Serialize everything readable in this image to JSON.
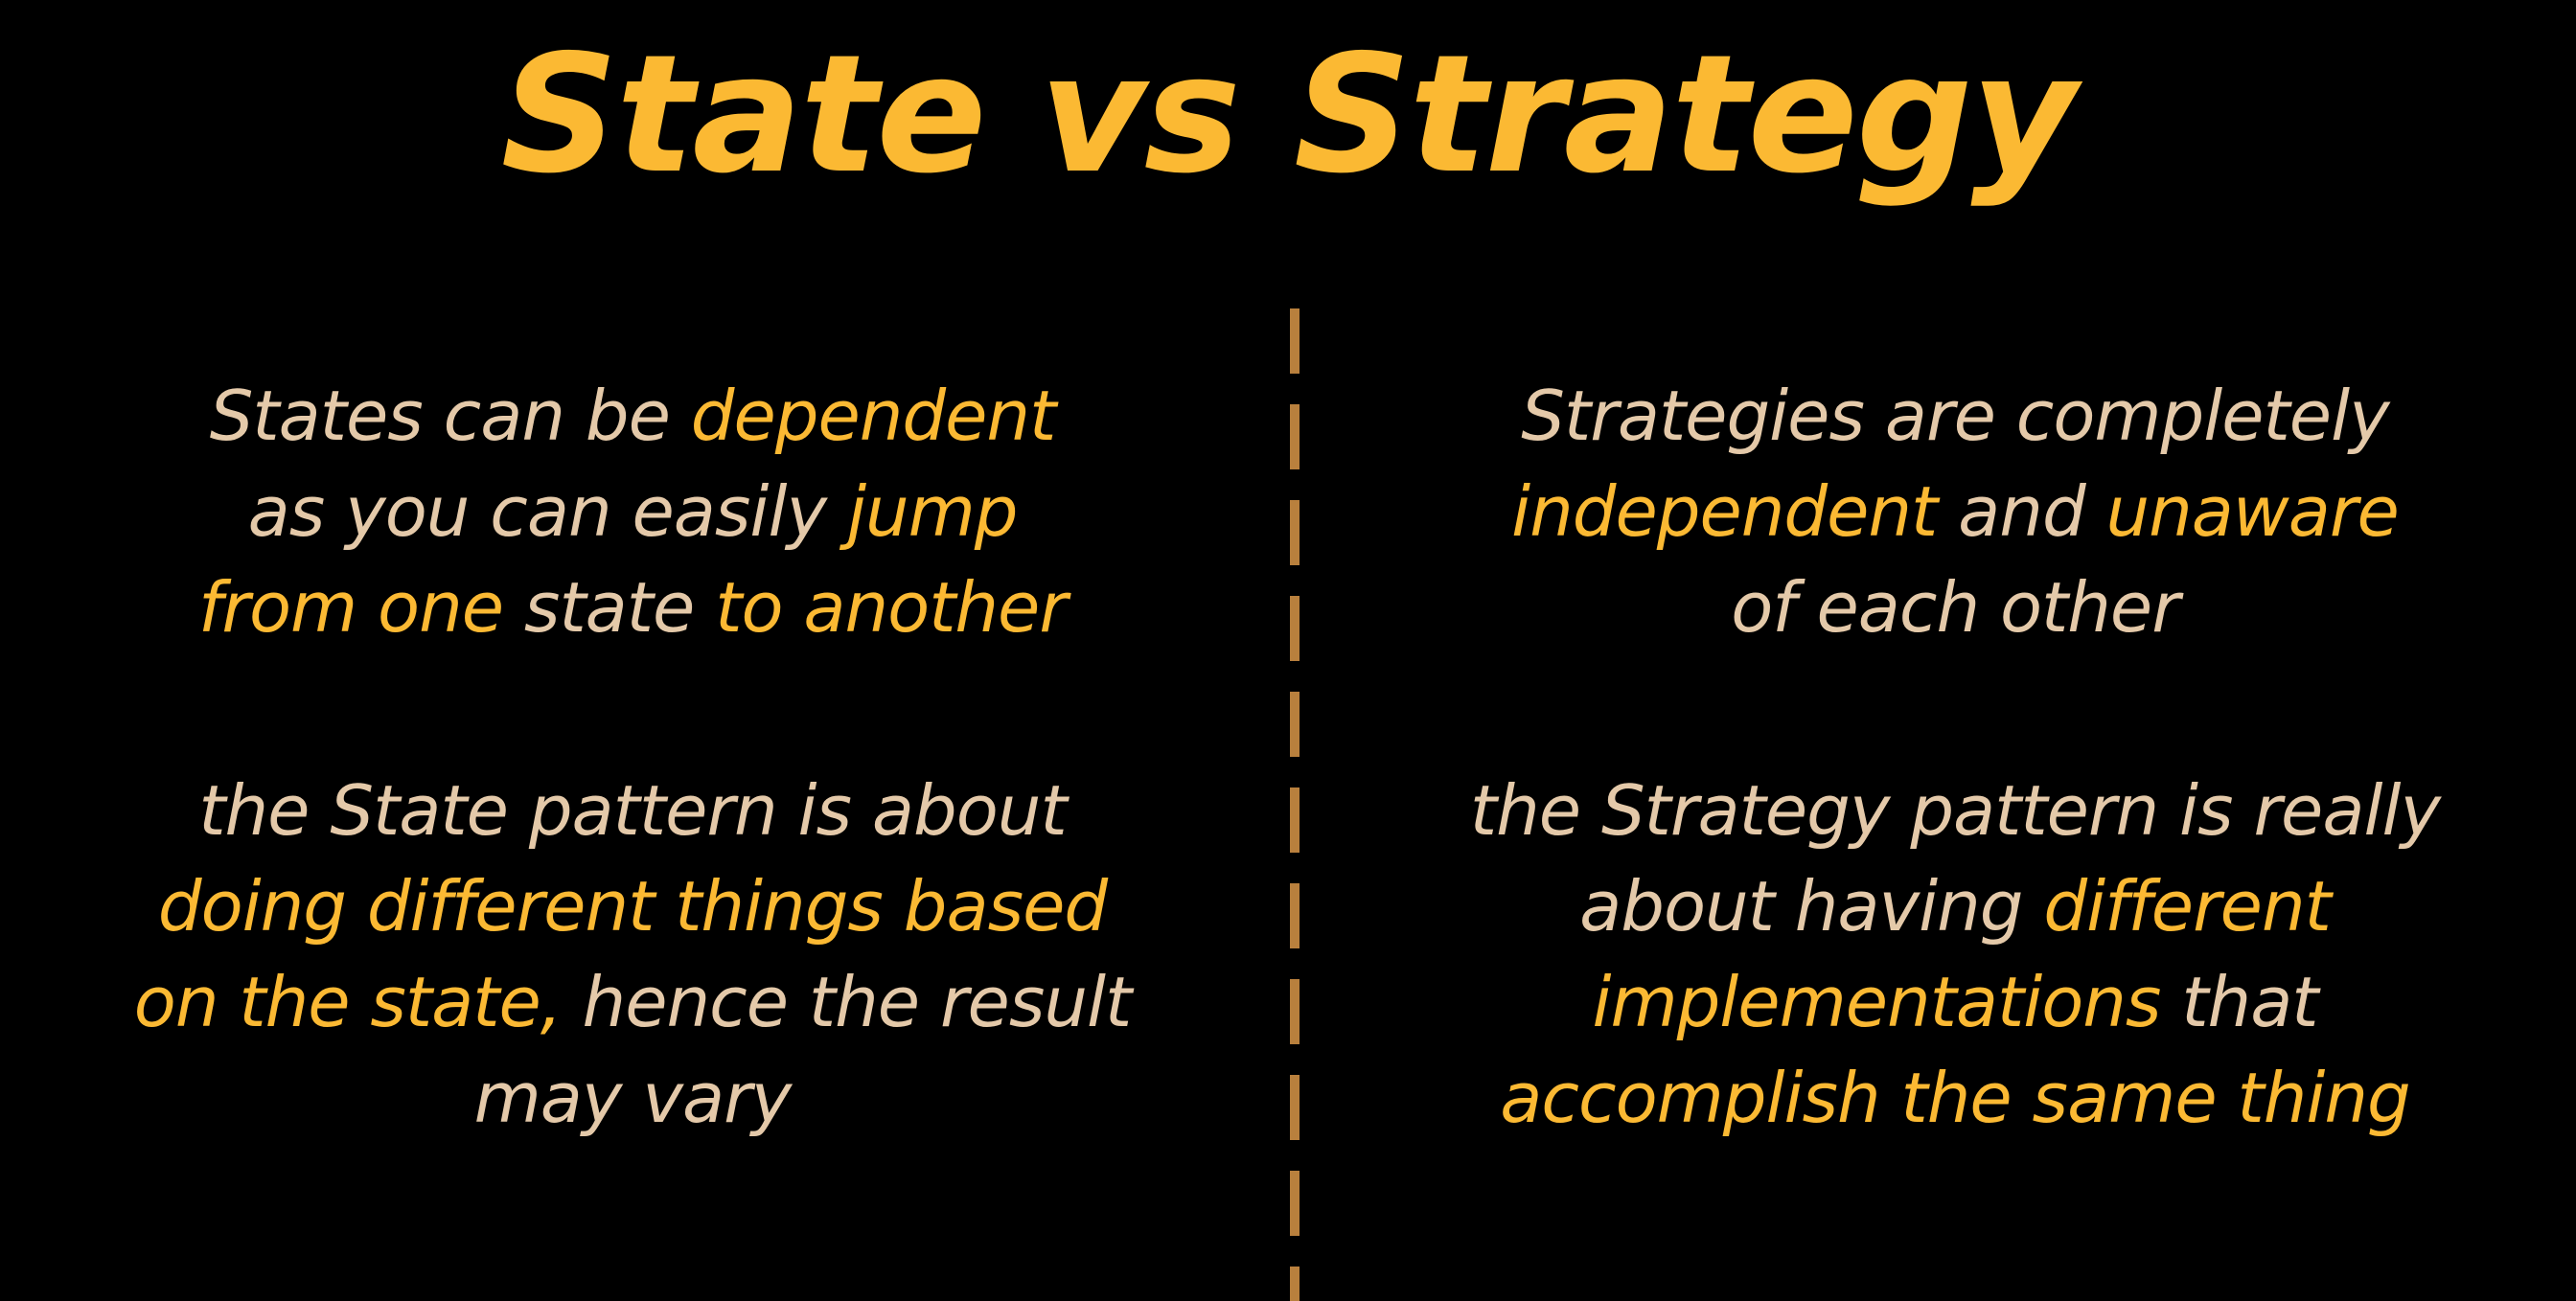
{
  "slide": {
    "title": "State vs Strategy",
    "colors": {
      "background": "#000000",
      "title": "#fbb933",
      "highlight": "#fbb933",
      "body_text": "#e4c9a9",
      "divider": "#b9803d"
    }
  },
  "left": {
    "p1": {
      "l1": {
        "a": "States can be ",
        "b": "dependent"
      },
      "l2": {
        "a": "as you can easily ",
        "b": "jump"
      },
      "l3": {
        "a": "from one",
        "b": " state ",
        "c": "to another"
      }
    },
    "p2": {
      "l1": {
        "a": "the State pattern is about"
      },
      "l2": {
        "a": "doing different things based"
      },
      "l3": {
        "a": "on the state,",
        "b": " hence the result"
      },
      "l4": {
        "a": "may vary"
      }
    }
  },
  "right": {
    "p1": {
      "l1": {
        "a": "Strategies are completely"
      },
      "l2": {
        "a": "independent",
        "b": " and ",
        "c": "unaware"
      },
      "l3": {
        "a": "of each other"
      }
    },
    "p2": {
      "l1": {
        "a": "the Strategy pattern is really"
      },
      "l2": {
        "a": "about having ",
        "b": "different"
      },
      "l3": {
        "a": "implementations",
        "b": " that"
      },
      "l4": {
        "a": "accomplish the same thing"
      }
    }
  }
}
